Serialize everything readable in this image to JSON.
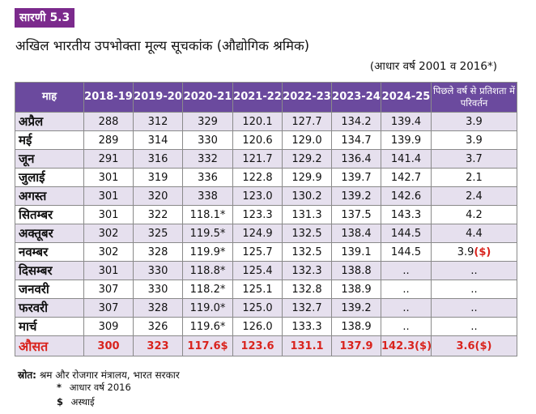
{
  "badge": "सारणी 5.3",
  "title": "अखिल भारतीय उपभोक्ता मूल्य सूचकांक (औद्योगिक श्रमिक)",
  "subtitle": "(आधार वर्ष 2001 व 2016*)",
  "table": {
    "headers": [
      "माह",
      "2018-19",
      "2019-20",
      "2020-21",
      "2021-22",
      "2022-23",
      "2023-24",
      "2024-25",
      "पिछले वर्ष से प्रतिशता में परिवर्तन"
    ],
    "rows": [
      {
        "month": "अप्रैल",
        "values": [
          "288",
          "312",
          "329",
          "120.1",
          "127.7",
          "134.2",
          "139.4",
          "3.9"
        ]
      },
      {
        "month": "मई",
        "values": [
          "289",
          "314",
          "330",
          "120.6",
          "129.0",
          "134.7",
          "139.9",
          "3.9"
        ]
      },
      {
        "month": "जून",
        "values": [
          "291",
          "316",
          "332",
          "121.7",
          "129.2",
          "136.4",
          "141.4",
          "3.7"
        ]
      },
      {
        "month": "जुलाई",
        "values": [
          "301",
          "319",
          "336",
          "122.8",
          "129.9",
          "139.7",
          "142.7",
          "2.1"
        ]
      },
      {
        "month": "अगस्त",
        "values": [
          "301",
          "320",
          "338",
          "123.0",
          "130.2",
          "139.2",
          "142.6",
          "2.4"
        ]
      },
      {
        "month": "सितम्बर",
        "values": [
          "301",
          "322",
          "118.1*",
          "123.3",
          "131.3",
          "137.5",
          "143.3",
          "4.2"
        ]
      },
      {
        "month": "अक्तूबर",
        "values": [
          "302",
          "325",
          "119.5*",
          "124.9",
          "132.5",
          "138.4",
          "144.5",
          "4.4"
        ]
      },
      {
        "month": "नवम्बर",
        "values": [
          "302",
          "328",
          "119.9*",
          "125.7",
          "132.5",
          "139.1",
          "144.5",
          "3.9"
        ],
        "last_suffix": "($)"
      },
      {
        "month": "दिसम्बर",
        "values": [
          "301",
          "330",
          "118.8*",
          "125.4",
          "132.3",
          "138.8",
          "..",
          ".."
        ]
      },
      {
        "month": "जनवरी",
        "values": [
          "307",
          "330",
          "118.2*",
          "125.1",
          "132.8",
          "138.9",
          "..",
          ".."
        ]
      },
      {
        "month": "फरवरी",
        "values": [
          "307",
          "328",
          "119.0*",
          "125.0",
          "132.7",
          "139.2",
          "..",
          ".."
        ]
      },
      {
        "month": "मार्च",
        "values": [
          "309",
          "326",
          "119.6*",
          "126.0",
          "133.3",
          "138.9",
          "..",
          ".."
        ]
      }
    ],
    "average": {
      "month": "औसत",
      "values": [
        "300",
        "323",
        "117.6$",
        "123.6",
        "131.1",
        "137.9",
        "142.3($)",
        "3.6($)"
      ]
    }
  },
  "source_label": "स्रोत:",
  "source_text": "श्रम और रोजगार मंत्रालय, भारत सरकार",
  "note1_symbol": "*",
  "note1_text": "आधार वर्ष 2016",
  "note2_symbol": "$",
  "note2_text": "अस्थाई",
  "colors": {
    "header_bg": "#6b4a9e",
    "badge_bg": "#7b2a8c",
    "alt_row": "#e6e0ee",
    "highlight_red": "#d9231d"
  }
}
